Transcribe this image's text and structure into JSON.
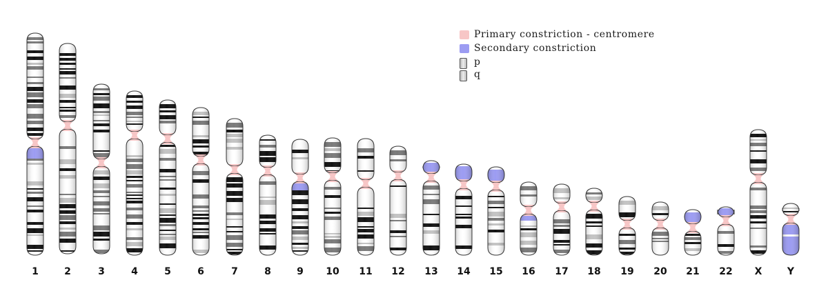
{
  "colors": {
    "centromere": "#f7c6c6",
    "secondary_constriction": "#9c9cf2",
    "band_dark": "#111111",
    "band_light": "#ffffff",
    "outline": "#333333"
  },
  "legend": {
    "items": [
      {
        "label": "Primary constriction - centromere",
        "icon": "pink-square-icon"
      },
      {
        "label": "Secondary constriction",
        "icon": "blue-square-icon"
      },
      {
        "label": "p",
        "icon": "chromosome-arm-icon"
      },
      {
        "label": "q",
        "icon": "chromosome-arm-icon"
      }
    ]
  },
  "chromosomes": [
    {
      "label": "1"
    },
    {
      "label": "2"
    },
    {
      "label": "3"
    },
    {
      "label": "4"
    },
    {
      "label": "5"
    },
    {
      "label": "6"
    },
    {
      "label": "7"
    },
    {
      "label": "8"
    },
    {
      "label": "9"
    },
    {
      "label": "10"
    },
    {
      "label": "11"
    },
    {
      "label": "12"
    },
    {
      "label": "13"
    },
    {
      "label": "14"
    },
    {
      "label": "15"
    },
    {
      "label": "16"
    },
    {
      "label": "17"
    },
    {
      "label": "18"
    },
    {
      "label": "19"
    },
    {
      "label": "20"
    },
    {
      "label": "21"
    },
    {
      "label": "22"
    },
    {
      "label": "X"
    },
    {
      "label": "Y"
    }
  ]
}
